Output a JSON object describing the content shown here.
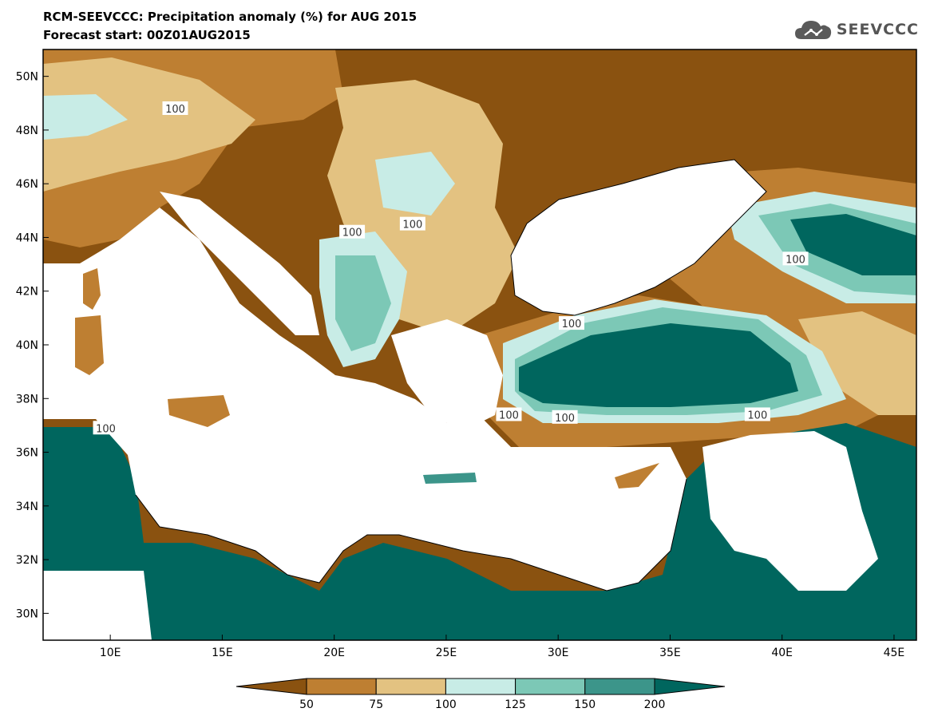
{
  "header": {
    "title": "RCM-SEEVCCC: Precipitation anomaly (%) for AUG 2015",
    "subtitle": "Forecast start: 00Z01AUG2015"
  },
  "logo": {
    "text": "SEEVCCC",
    "icon": "cloud-icon",
    "color": "#5a5a5a"
  },
  "map": {
    "lon_range": [
      7,
      46
    ],
    "lat_range": [
      29,
      51
    ],
    "x_ticks": [
      {
        "value": 10,
        "label": "10E"
      },
      {
        "value": 15,
        "label": "15E"
      },
      {
        "value": 20,
        "label": "20E"
      },
      {
        "value": 25,
        "label": "25E"
      },
      {
        "value": 30,
        "label": "30E"
      },
      {
        "value": 35,
        "label": "35E"
      },
      {
        "value": 40,
        "label": "40E"
      },
      {
        "value": 45,
        "label": "45E"
      }
    ],
    "y_ticks": [
      {
        "value": 30,
        "label": "30N"
      },
      {
        "value": 32,
        "label": "32N"
      },
      {
        "value": 34,
        "label": "34N"
      },
      {
        "value": 36,
        "label": "36N"
      },
      {
        "value": 38,
        "label": "38N"
      },
      {
        "value": 40,
        "label": "40N"
      },
      {
        "value": 42,
        "label": "42N"
      },
      {
        "value": 44,
        "label": "44N"
      },
      {
        "value": 46,
        "label": "46N"
      },
      {
        "value": 48,
        "label": "48N"
      },
      {
        "value": 50,
        "label": "50N"
      }
    ],
    "contour_labels": [
      {
        "text": "100",
        "lon": 12.9,
        "lat": 48.8
      },
      {
        "text": "100",
        "lon": 20.8,
        "lat": 44.2
      },
      {
        "text": "100",
        "lon": 23.5,
        "lat": 44.5
      },
      {
        "text": "100",
        "lon": 30.6,
        "lat": 40.8
      },
      {
        "text": "100",
        "lon": 30.3,
        "lat": 37.3
      },
      {
        "text": "100",
        "lon": 38.9,
        "lat": 37.4
      },
      {
        "text": "100",
        "lon": 27.8,
        "lat": 37.4
      },
      {
        "text": "100",
        "lon": 40.6,
        "lat": 43.2
      },
      {
        "text": "100",
        "lon": 9.8,
        "lat": 36.9
      }
    ]
  },
  "colorbar": {
    "levels": [
      "50",
      "75",
      "100",
      "125",
      "150",
      "200"
    ],
    "colors": [
      "#8a5210",
      "#be7f32",
      "#e3c281",
      "#c8ece6",
      "#7cc8b6",
      "#3c958a",
      "#00665e"
    ]
  }
}
